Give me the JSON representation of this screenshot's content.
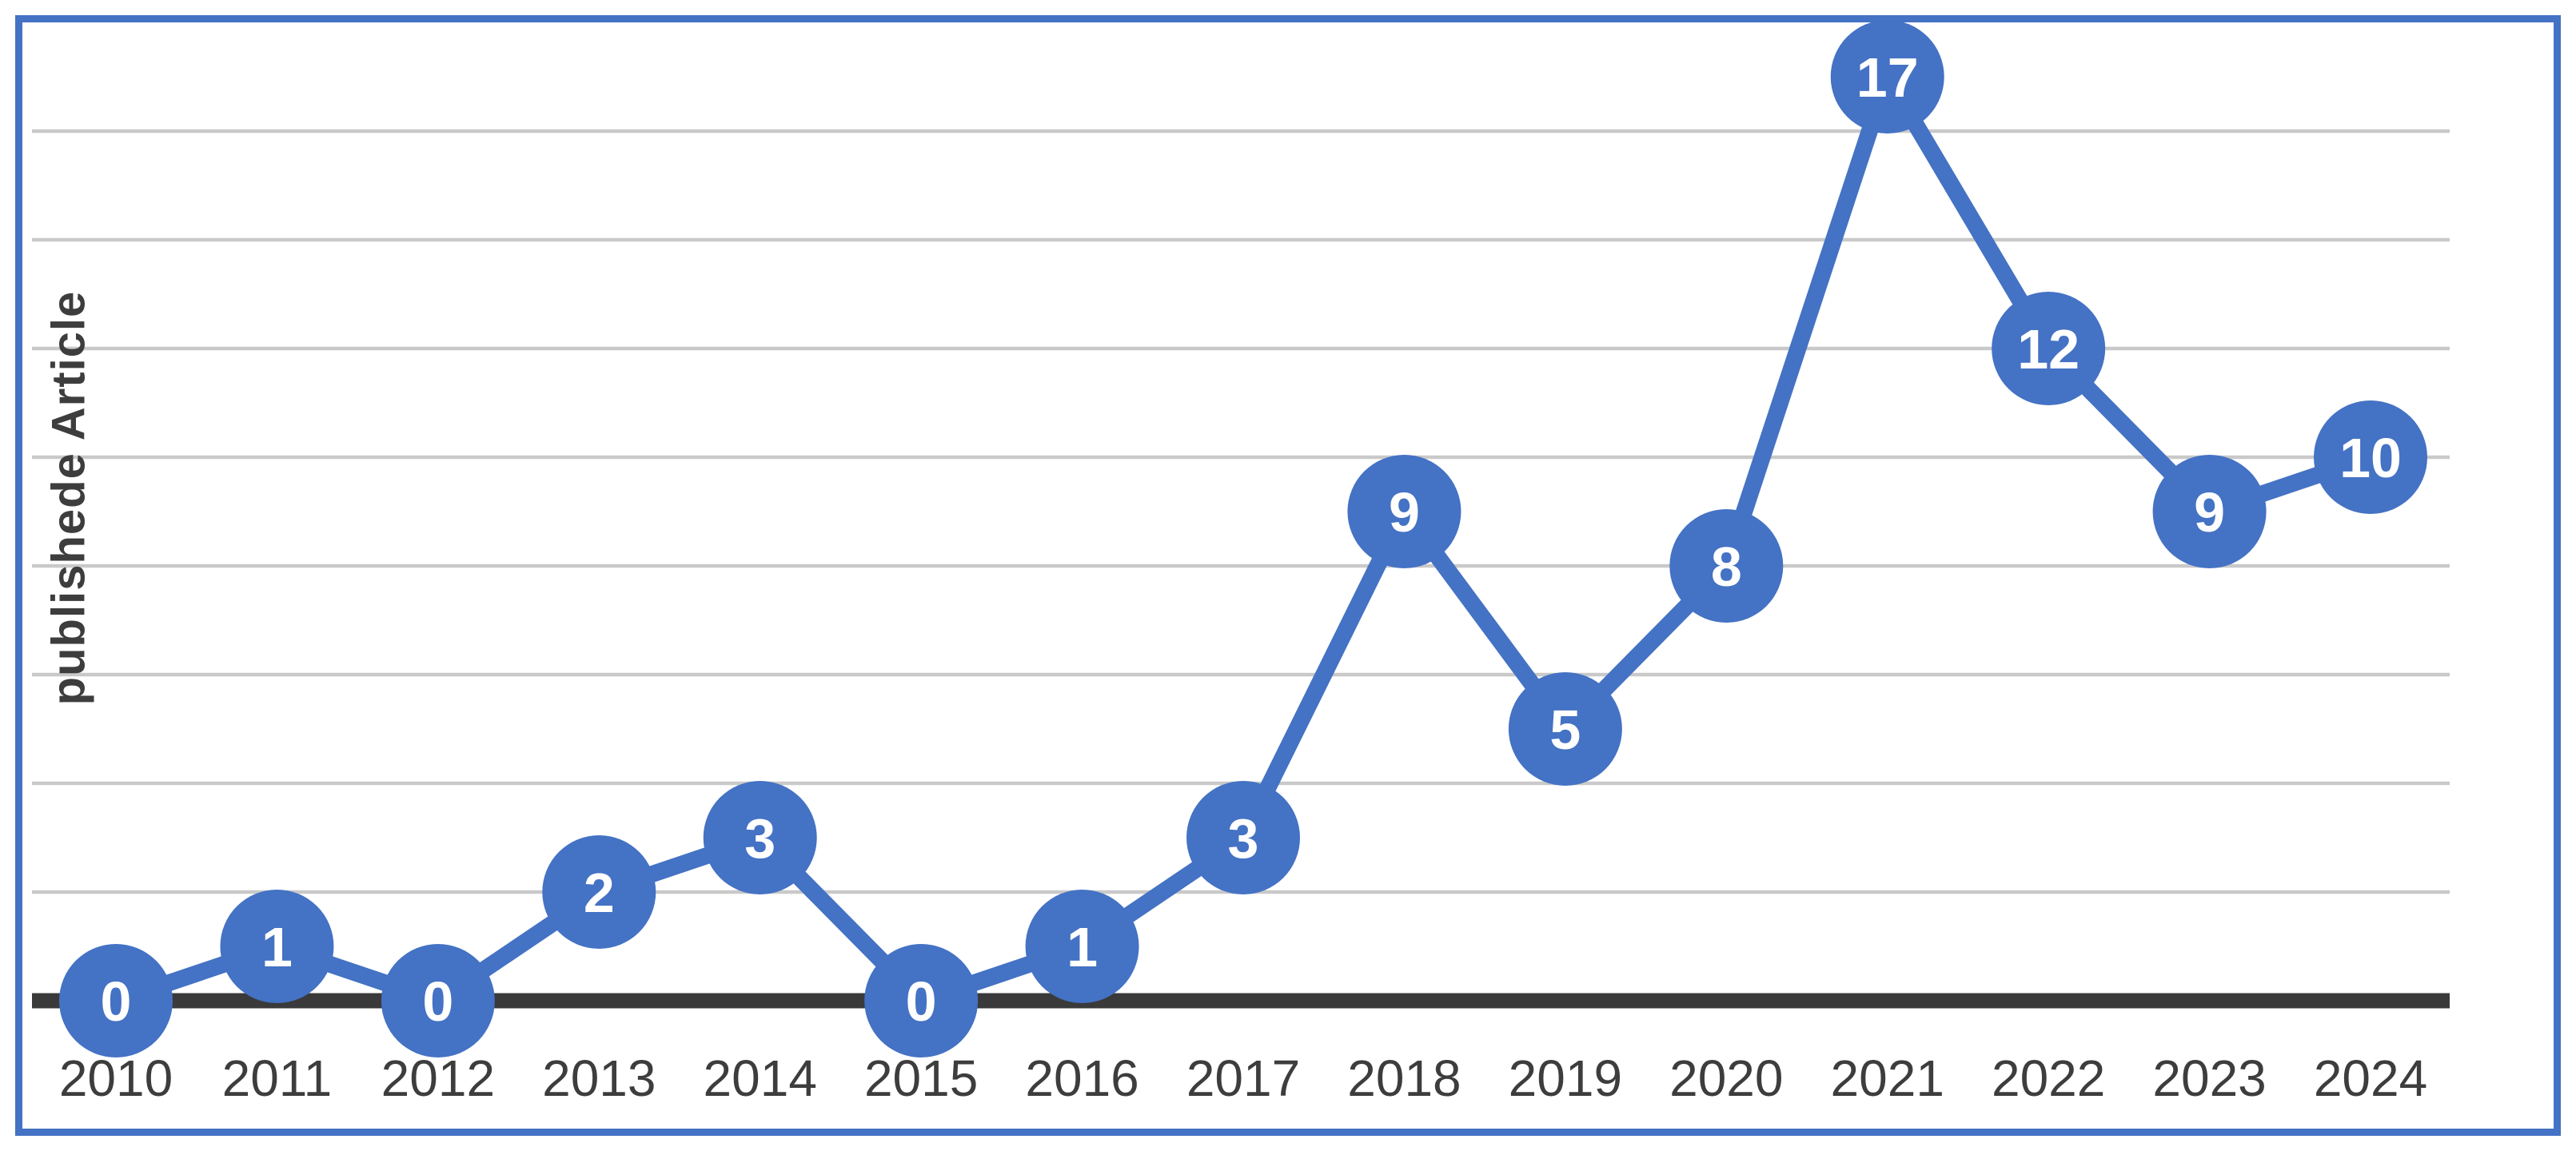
{
  "colors": {
    "accent": "#4472C4",
    "border": "#4472C4",
    "axis_line": "#3A3A3A",
    "gridline": "#C9C9C9",
    "tick_label": "#3D3D3D",
    "data_label": "#FFFFFF",
    "background": "#FFFFFF"
  },
  "chart_data": {
    "type": "line",
    "title": "",
    "xlabel": "",
    "ylabel": "publishede Article",
    "categories": [
      "2010",
      "2011",
      "2012",
      "2013",
      "2014",
      "2015",
      "2016",
      "2017",
      "2018",
      "2019",
      "2020",
      "2021",
      "2022",
      "2023",
      "2024"
    ],
    "series": [
      {
        "name": "publishede Article",
        "values": [
          0,
          1,
          0,
          2,
          3,
          0,
          1,
          3,
          9,
          5,
          8,
          17,
          12,
          9,
          10
        ]
      }
    ],
    "ylim": [
      0,
      18
    ],
    "gridlines_y": [
      2,
      4,
      6,
      8,
      10,
      12,
      14,
      16
    ],
    "grid": "horizontal",
    "legend": "none",
    "data_labels": "inside markers",
    "marker": "circle"
  }
}
